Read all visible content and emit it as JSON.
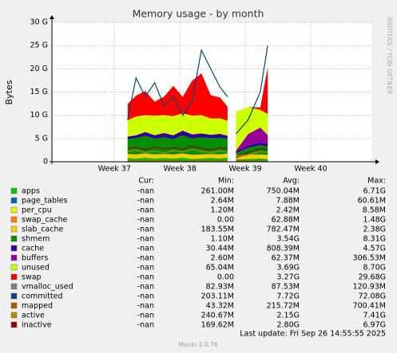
{
  "chart_data": {
    "type": "stacked-area",
    "title": "Memory usage - by month",
    "y_label": "Bytes",
    "side_text": "RRDTOOL / TOBI OETIKER",
    "footer": "Last update: Fri Sep 26 14:55:55 2025",
    "version": "Munin 2.0.76",
    "columns": [
      "Cur:",
      "Min:",
      "Avg:",
      "Max:"
    ],
    "xlim": [
      0,
      34.2
    ],
    "xticks": [
      {
        "value": 6.7,
        "label": "Week 37"
      },
      {
        "value": 13.7,
        "label": "Week 38"
      },
      {
        "value": 20.7,
        "label": "Week 39"
      },
      {
        "value": 27.7,
        "label": "Week 40"
      }
    ],
    "ylim": [
      0,
      30
    ],
    "yticks": [
      0,
      {
        "value": 5,
        "label": "5 G"
      },
      {
        "value": 10,
        "label": "10 G"
      },
      {
        "value": 15,
        "label": "15 G"
      },
      {
        "value": 20,
        "label": "20 G"
      },
      {
        "value": 25,
        "label": "25 G"
      },
      {
        "value": 30,
        "label": "30 G"
      }
    ],
    "grid": true,
    "x": [
      8.1,
      9,
      10,
      11,
      12,
      13,
      14,
      15,
      16,
      17,
      18,
      18.8,
      19.2,
      19.7,
      21,
      22.3,
      23.1
    ],
    "series": [
      {
        "name": "apps",
        "color": "#00CC00",
        "kind": "area",
        "cur": "-nan",
        "min": "261.00M",
        "avg": "750.04M",
        "max": "6.71G",
        "values": [
          0.8,
          0.7,
          0.9,
          0.7,
          0.8,
          0.7,
          0.9,
          0.6,
          0.7,
          0.8,
          0.7,
          0.9,
          null,
          0.5,
          0.6,
          0.7,
          0.6
        ]
      },
      {
        "name": "page_tables",
        "color": "#0066B3",
        "kind": "area",
        "cur": "-nan",
        "min": "2.64M",
        "avg": "7.88M",
        "max": "60.61M",
        "values": [
          0.01,
          0.01,
          0.01,
          0.01,
          0.01,
          0.01,
          0.01,
          0.01,
          0.01,
          0.01,
          0.01,
          0.01,
          null,
          0.01,
          0.01,
          0.01,
          0.01
        ]
      },
      {
        "name": "per_cpu",
        "color": "#FFF200",
        "kind": "area",
        "cur": "-nan",
        "min": "1.20M",
        "avg": "2.42M",
        "max": "8.58M",
        "values": [
          0.002,
          0.002,
          0.002,
          0.002,
          0.002,
          0.002,
          0.002,
          0.002,
          0.002,
          0.002,
          0.002,
          0.002,
          null,
          0.002,
          0.002,
          0.002,
          0.002
        ]
      },
      {
        "name": "swap_cache",
        "color": "#FF8000",
        "kind": "area",
        "cur": "-nan",
        "min": "0.00",
        "avg": "62.88M",
        "max": "1.48G",
        "values": [
          0.06,
          0.06,
          0.06,
          0.06,
          0.06,
          0.06,
          0.06,
          0.06,
          0.06,
          0.06,
          0.06,
          0.06,
          null,
          0.06,
          0.06,
          0.06,
          0.06
        ]
      },
      {
        "name": "slab_cache",
        "color": "#FFCC00",
        "kind": "area",
        "cur": "-nan",
        "min": "183.55M",
        "avg": "782.47M",
        "max": "2.38G",
        "values": [
          0.8,
          0.8,
          0.8,
          0.8,
          0.8,
          0.8,
          0.8,
          0.8,
          0.8,
          0.8,
          0.8,
          0.8,
          null,
          0.8,
          0.8,
          0.8,
          0.8
        ]
      },
      {
        "name": "shmem",
        "color": "#008F00",
        "kind": "area",
        "cur": "-nan",
        "min": "1.10M",
        "avg": "3.54G",
        "max": "8.31G",
        "values": [
          3.2,
          3.5,
          3.8,
          3.4,
          3.6,
          3.3,
          3.9,
          3.5,
          3.7,
          3.4,
          3.6,
          3.2,
          null,
          0.5,
          1.5,
          2.0,
          1.8
        ]
      },
      {
        "name": "cache",
        "color": "#330099",
        "kind": "area",
        "cur": "-nan",
        "min": "30.44M",
        "avg": "808.39M",
        "max": "4.57G",
        "values": [
          0.5,
          0.6,
          0.8,
          0.7,
          0.9,
          0.8,
          1.0,
          0.9,
          0.8,
          0.7,
          0.8,
          0.6,
          null,
          0.4,
          0.5,
          0.6,
          0.5
        ]
      },
      {
        "name": "buffers",
        "color": "#990099",
        "kind": "area",
        "cur": "-nan",
        "min": "2.60M",
        "avg": "62.37M",
        "max": "306.53M",
        "values": [
          0.05,
          0.05,
          0.05,
          0.05,
          0.05,
          0.05,
          0.05,
          0.05,
          0.05,
          0.05,
          0.05,
          0.05,
          null,
          0.1,
          2.5,
          3.2,
          2.0
        ]
      },
      {
        "name": "unused",
        "color": "#CCFF00",
        "kind": "area",
        "cur": "-nan",
        "min": "65.04M",
        "avg": "3.69G",
        "max": "8.70G",
        "values": [
          3.5,
          4.0,
          3.6,
          4.2,
          3.8,
          4.1,
          3.7,
          4.0,
          3.9,
          3.5,
          3.3,
          3.2,
          null,
          8.4,
          5.8,
          3.8,
          4.5
        ]
      },
      {
        "name": "swap",
        "color": "#FF0000",
        "kind": "area",
        "cur": "-nan",
        "min": "0.00",
        "avg": "3.27G",
        "max": "29.68G",
        "values": [
          3.5,
          4.5,
          5.2,
          3.0,
          4.0,
          6.5,
          3.5,
          7.5,
          9.0,
          5.0,
          4.5,
          3.0,
          null,
          0.0,
          0.0,
          0.5,
          10.0
        ]
      },
      {
        "name": "vmalloc_used",
        "color": "#808080",
        "kind": "line",
        "cur": "-nan",
        "min": "82.93M",
        "avg": "87.53M",
        "max": "120.93M",
        "values": [
          0.09,
          0.09,
          0.09,
          0.09,
          0.09,
          0.09,
          0.09,
          0.09,
          0.09,
          0.09,
          0.09,
          0.09,
          null,
          0.09,
          0.09,
          0.09,
          0.09
        ]
      },
      {
        "name": "committed",
        "color": "#00487D",
        "kind": "line",
        "cur": "-nan",
        "min": "203.11M",
        "avg": "7.72G",
        "max": "72.08G",
        "values": [
          9,
          18,
          14,
          17,
          12,
          14,
          10,
          13,
          24,
          20,
          16,
          14,
          null,
          6,
          9,
          15,
          25
        ]
      },
      {
        "name": "mapped",
        "color": "#B35A00",
        "kind": "line",
        "cur": "-nan",
        "min": "43.32M",
        "avg": "215.72M",
        "max": "700.41M",
        "values": [
          0.2,
          0.2,
          0.2,
          0.2,
          0.2,
          0.2,
          0.2,
          0.2,
          0.2,
          0.2,
          0.2,
          0.2,
          null,
          0.2,
          0.2,
          0.2,
          0.2
        ]
      },
      {
        "name": "active",
        "color": "#B38F00",
        "kind": "line",
        "cur": "-nan",
        "min": "240.67M",
        "avg": "2.15G",
        "max": "7.41G",
        "values": [
          2.2,
          2.5,
          2.0,
          2.3,
          1.9,
          2.4,
          2.1,
          2.6,
          2.2,
          2.0,
          2.3,
          2.1,
          null,
          0.8,
          1.5,
          2.2,
          2.0
        ]
      },
      {
        "name": "inactive",
        "color": "#990000",
        "kind": "line",
        "cur": "-nan",
        "min": "169.62M",
        "avg": "2.80G",
        "max": "6.97G",
        "values": [
          2.9,
          3.1,
          2.6,
          3.2,
          2.8,
          3.0,
          2.7,
          3.3,
          2.9,
          2.6,
          3.0,
          2.8,
          null,
          1.0,
          2.0,
          2.8,
          2.6
        ]
      }
    ]
  }
}
